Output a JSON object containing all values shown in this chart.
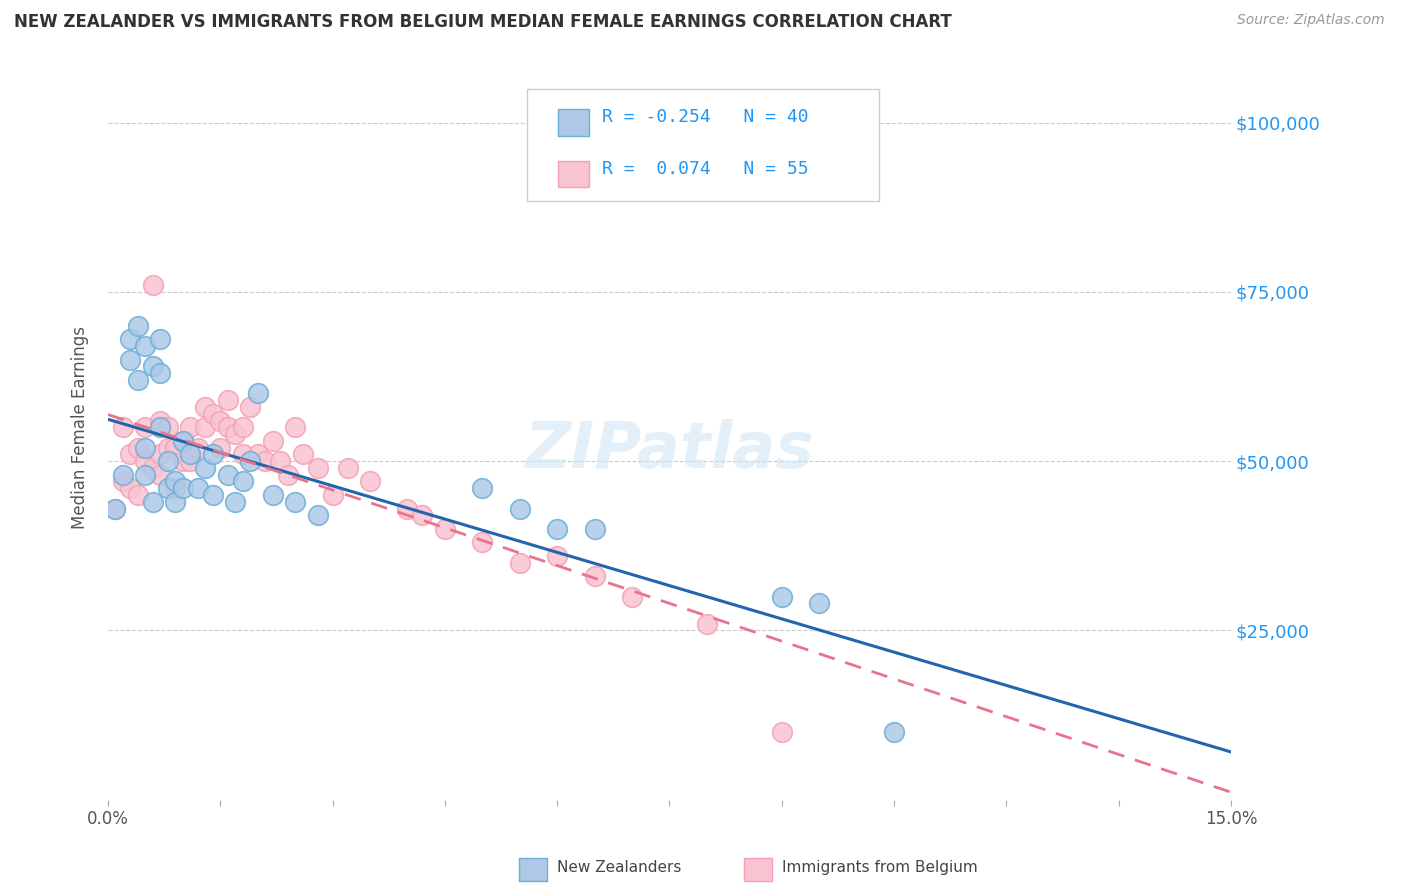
{
  "title": "NEW ZEALANDER VS IMMIGRANTS FROM BELGIUM MEDIAN FEMALE EARNINGS CORRELATION CHART",
  "source": "Source: ZipAtlas.com",
  "ylabel": "Median Female Earnings",
  "xlim": [
    0.0,
    0.15
  ],
  "ylim": [
    0,
    110000
  ],
  "yticks": [
    0,
    25000,
    50000,
    75000,
    100000
  ],
  "ytick_labels": [
    "",
    "$25,000",
    "$50,000",
    "$75,000",
    "$100,000"
  ],
  "background_color": "#ffffff",
  "grid_color": "#cccccc",
  "color_nz_fill": "#aec9e8",
  "color_nz_edge": "#6baed6",
  "color_be_fill": "#f9c4d2",
  "color_be_edge": "#f4a0b5",
  "color_line_nz": "#2166ac",
  "color_line_be": "#e8748a",
  "nz_x": [
    0.001,
    0.002,
    0.003,
    0.003,
    0.004,
    0.004,
    0.005,
    0.005,
    0.005,
    0.006,
    0.006,
    0.007,
    0.007,
    0.007,
    0.008,
    0.008,
    0.009,
    0.009,
    0.01,
    0.01,
    0.011,
    0.012,
    0.013,
    0.014,
    0.014,
    0.016,
    0.017,
    0.018,
    0.019,
    0.02,
    0.022,
    0.025,
    0.028,
    0.05,
    0.055,
    0.06,
    0.065,
    0.09,
    0.095,
    0.105
  ],
  "nz_y": [
    43000,
    48000,
    65000,
    68000,
    70000,
    62000,
    48000,
    52000,
    67000,
    44000,
    64000,
    63000,
    55000,
    68000,
    46000,
    50000,
    44000,
    47000,
    46000,
    53000,
    51000,
    46000,
    49000,
    45000,
    51000,
    48000,
    44000,
    47000,
    50000,
    60000,
    45000,
    44000,
    42000,
    46000,
    43000,
    40000,
    40000,
    30000,
    29000,
    10000
  ],
  "be_x": [
    0.001,
    0.002,
    0.002,
    0.003,
    0.003,
    0.004,
    0.004,
    0.005,
    0.005,
    0.006,
    0.006,
    0.007,
    0.007,
    0.007,
    0.008,
    0.008,
    0.009,
    0.009,
    0.01,
    0.01,
    0.011,
    0.011,
    0.012,
    0.013,
    0.013,
    0.014,
    0.015,
    0.015,
    0.016,
    0.016,
    0.017,
    0.018,
    0.018,
    0.019,
    0.02,
    0.021,
    0.022,
    0.023,
    0.024,
    0.025,
    0.026,
    0.028,
    0.03,
    0.032,
    0.035,
    0.04,
    0.042,
    0.045,
    0.05,
    0.055,
    0.06,
    0.065,
    0.07,
    0.08,
    0.09
  ],
  "be_y": [
    43000,
    55000,
    47000,
    46000,
    51000,
    45000,
    52000,
    50000,
    55000,
    76000,
    49000,
    51000,
    48000,
    56000,
    52000,
    55000,
    46000,
    52000,
    50000,
    53000,
    50000,
    55000,
    52000,
    55000,
    58000,
    57000,
    56000,
    52000,
    59000,
    55000,
    54000,
    55000,
    51000,
    58000,
    51000,
    50000,
    53000,
    50000,
    48000,
    55000,
    51000,
    49000,
    45000,
    49000,
    47000,
    43000,
    42000,
    40000,
    38000,
    35000,
    36000,
    33000,
    30000,
    26000,
    10000
  ]
}
